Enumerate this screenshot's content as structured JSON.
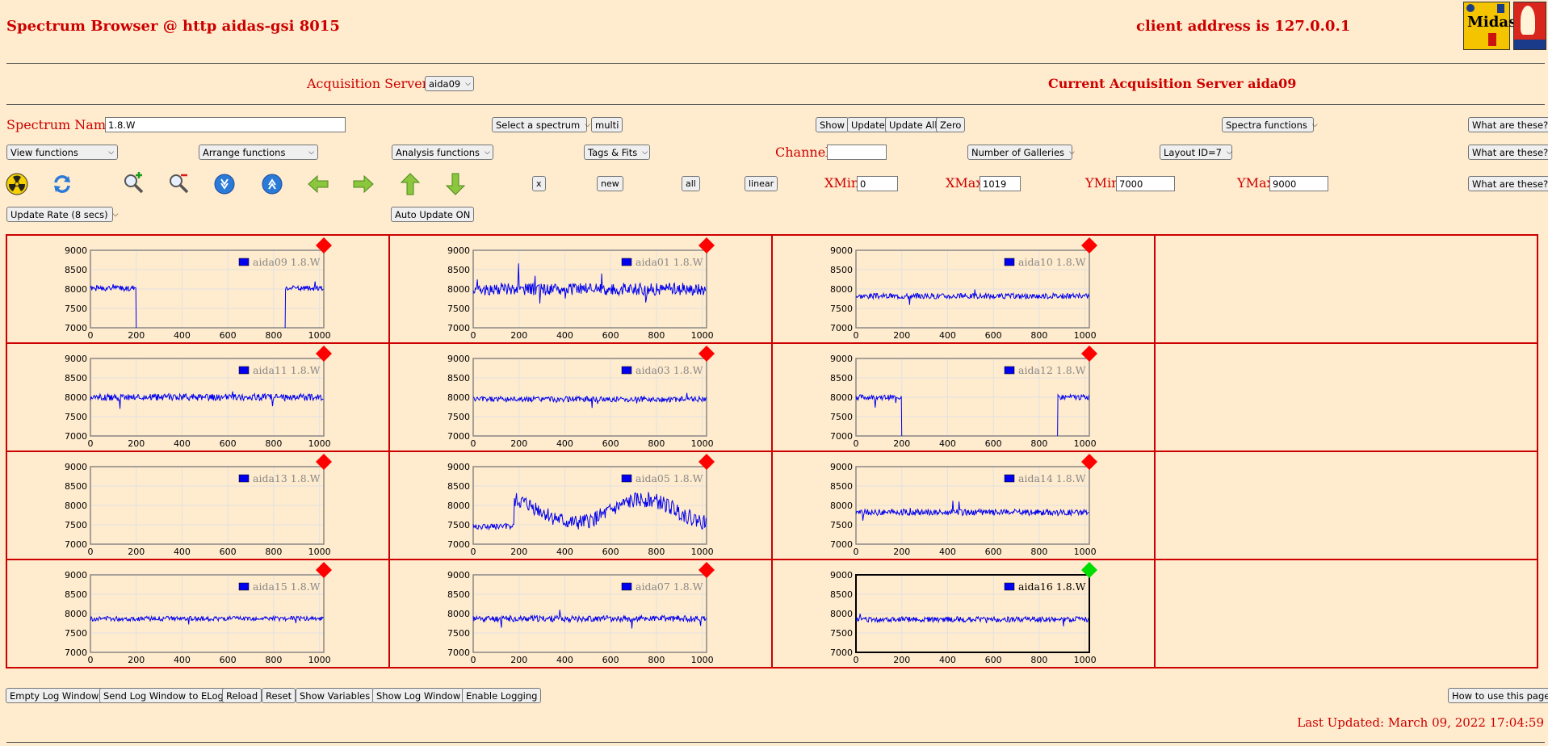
{
  "header": {
    "title": "Spectrum Browser @ http aidas-gsi 8015",
    "client_address": "client address is 127.0.0.1"
  },
  "acquisition": {
    "label": "Acquisition Servers",
    "selected": "aida09",
    "current": "Current Acquisition Server aida09"
  },
  "spectrum": {
    "name_label": "Spectrum Name:",
    "name_value": "1.8.W",
    "select_spectrum": "Select a spectrum",
    "multi": "multi",
    "show": "Show",
    "update": "Update",
    "update_all": "Update All",
    "zero": "Zero",
    "spectra_functions": "Spectra functions",
    "what": "What are these?"
  },
  "functions": {
    "view": "View functions",
    "arrange": "Arrange functions",
    "analysis": "Analysis functions",
    "tags": "Tags & Fits",
    "channel_label": "Channel:",
    "channel_value": "",
    "galleries": "Number of Galleries",
    "layout": "Layout ID=7"
  },
  "toolbar": {
    "icons": [
      "radiation-icon",
      "refresh-icon",
      "zoom-in-icon",
      "zoom-out-icon",
      "down-arrow-circle-icon",
      "up-arrow-circle-icon",
      "left-arrow-icon",
      "right-arrow-icon",
      "up-arrow-icon",
      "down-arrow-icon"
    ],
    "x": "x",
    "new": "new",
    "all": "all",
    "linear": "linear",
    "xmin_label": "XMin",
    "xmin": "0",
    "xmax_label": "XMax",
    "xmax": "1019",
    "ymin_label": "YMin",
    "ymin": "7000",
    "ymax_label": "YMax",
    "ymax": "9000"
  },
  "update": {
    "rate": "Update Rate (8 secs)",
    "auto": "Auto Update ON"
  },
  "footer": {
    "empty_log": "Empty Log Window",
    "send_log": "Send Log Window to ELog",
    "reload": "Reload",
    "reset": "Reset",
    "show_vars": "Show Variables",
    "show_log": "Show Log Window",
    "enable_logging": "Enable Logging",
    "how_to": "How to use this page",
    "last_updated": "Last Updated: March 09, 2022 17:04:59"
  },
  "colors": {
    "background": "#ffebcd",
    "text_red": "#cc0000",
    "series_blue": "#0000ee",
    "status_red": "#ff0000",
    "status_green": "#00dd00"
  },
  "chart_data": {
    "type": "line",
    "xlim": [
      0,
      1019
    ],
    "ylim": [
      7000,
      9000
    ],
    "xticks": [
      0,
      200,
      400,
      600,
      800,
      1000
    ],
    "yticks": [
      7000,
      7500,
      8000,
      8500,
      9000
    ],
    "grid": true,
    "legend_position": "top-right",
    "layout": "3 columns x 4 rows",
    "charts": [
      {
        "name": "aida09 1.8.W",
        "status": "red",
        "active": false,
        "profile": "gap",
        "base": 8020,
        "noise": 70,
        "gap": [
          200,
          850
        ],
        "seed": 1
      },
      {
        "name": "aida01 1.8.W",
        "status": "red",
        "active": false,
        "profile": "noisy",
        "base": 8000,
        "noise": 160,
        "seed": 2
      },
      {
        "name": "aida10 1.8.W",
        "status": "red",
        "active": false,
        "profile": "flat",
        "base": 7820,
        "noise": 70,
        "seed": 3
      },
      {
        "name": "aida11 1.8.W",
        "status": "red",
        "active": false,
        "profile": "flat",
        "base": 8000,
        "noise": 90,
        "seed": 4
      },
      {
        "name": "aida03 1.8.W",
        "status": "red",
        "active": false,
        "profile": "flat",
        "base": 7950,
        "noise": 70,
        "seed": 5
      },
      {
        "name": "aida12 1.8.W",
        "status": "red",
        "active": false,
        "profile": "gap",
        "base": 8000,
        "noise": 70,
        "gap": [
          200,
          880
        ],
        "seed": 6
      },
      {
        "name": "aida13 1.8.W",
        "status": "red",
        "active": false,
        "profile": "empty",
        "seed": 7
      },
      {
        "name": "aida05 1.8.W",
        "status": "red",
        "active": false,
        "profile": "wild",
        "base": 7850,
        "noise": 200,
        "seed": 8
      },
      {
        "name": "aida14 1.8.W",
        "status": "red",
        "active": false,
        "profile": "flat",
        "base": 7820,
        "noise": 80,
        "seed": 9
      },
      {
        "name": "aida15 1.8.W",
        "status": "red",
        "active": false,
        "profile": "flat",
        "base": 7870,
        "noise": 60,
        "seed": 10
      },
      {
        "name": "aida07 1.8.W",
        "status": "red",
        "active": false,
        "profile": "flat",
        "base": 7870,
        "noise": 80,
        "seed": 11
      },
      {
        "name": "aida16 1.8.W",
        "status": "green",
        "active": true,
        "profile": "flat",
        "base": 7850,
        "noise": 70,
        "seed": 12
      }
    ]
  }
}
